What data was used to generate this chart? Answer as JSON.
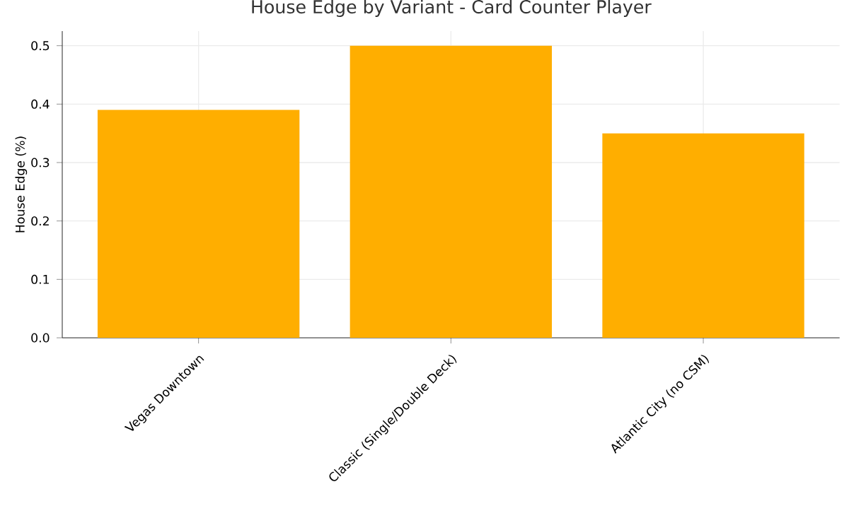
{
  "chart_data": {
    "type": "bar",
    "title": "House Edge by Variant - Card Counter Player",
    "ylabel": "House Edge (%)",
    "categories": [
      "Vegas Downtown",
      "Classic (Single/Double Deck)",
      "Atlantic City (no CSM)"
    ],
    "values": [
      0.39,
      0.5,
      0.35
    ],
    "color": "#ffae00",
    "ylim": [
      0,
      0.525
    ],
    "yticks": [
      {
        "value": 0,
        "label": "0.0"
      },
      0.1,
      0.2,
      0.3,
      0.4,
      0.5
    ],
    "grid": true
  }
}
